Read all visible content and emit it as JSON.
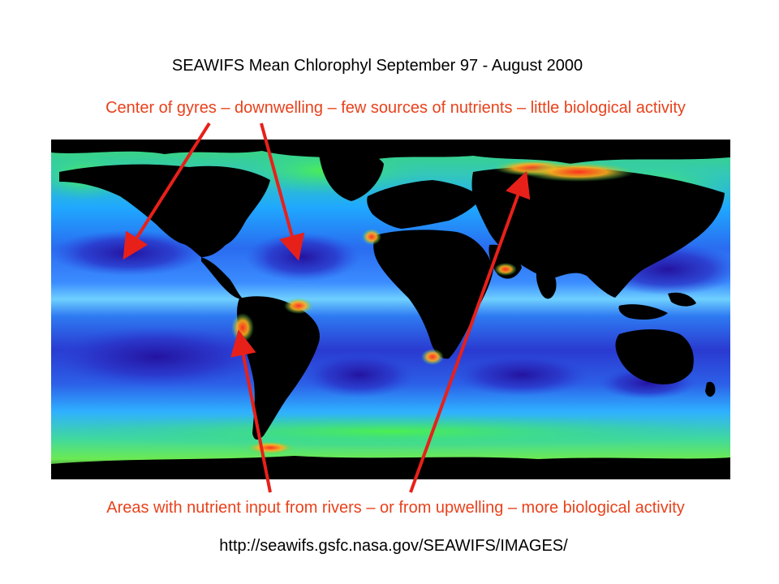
{
  "slide": {
    "title": "SEAWIFS Mean Chlorophyl September 97 - August 2000",
    "top_annotation": "Center of gyres – downwelling – few sources of nutrients – little biological activity",
    "bottom_annotation": "Areas with nutrient input from rivers – or from upwelling – more biological activity",
    "source_url": "http://seawifs.gsfc.nasa.gov/SEAWIFS/IMAGES/"
  },
  "map": {
    "subject": "Global ocean mean chlorophyll concentration (SeaWiFS)",
    "land_color": "#000000",
    "low_chlorophyll_color": "#2a1aa8",
    "mid_chlorophyll_color": "#1fa0ff",
    "high_chlorophyll_color": "#2be25a",
    "very_high_chlorophyll_color": "#ff2a1a"
  },
  "annotations": {
    "arrow_color": "#e8201a"
  }
}
